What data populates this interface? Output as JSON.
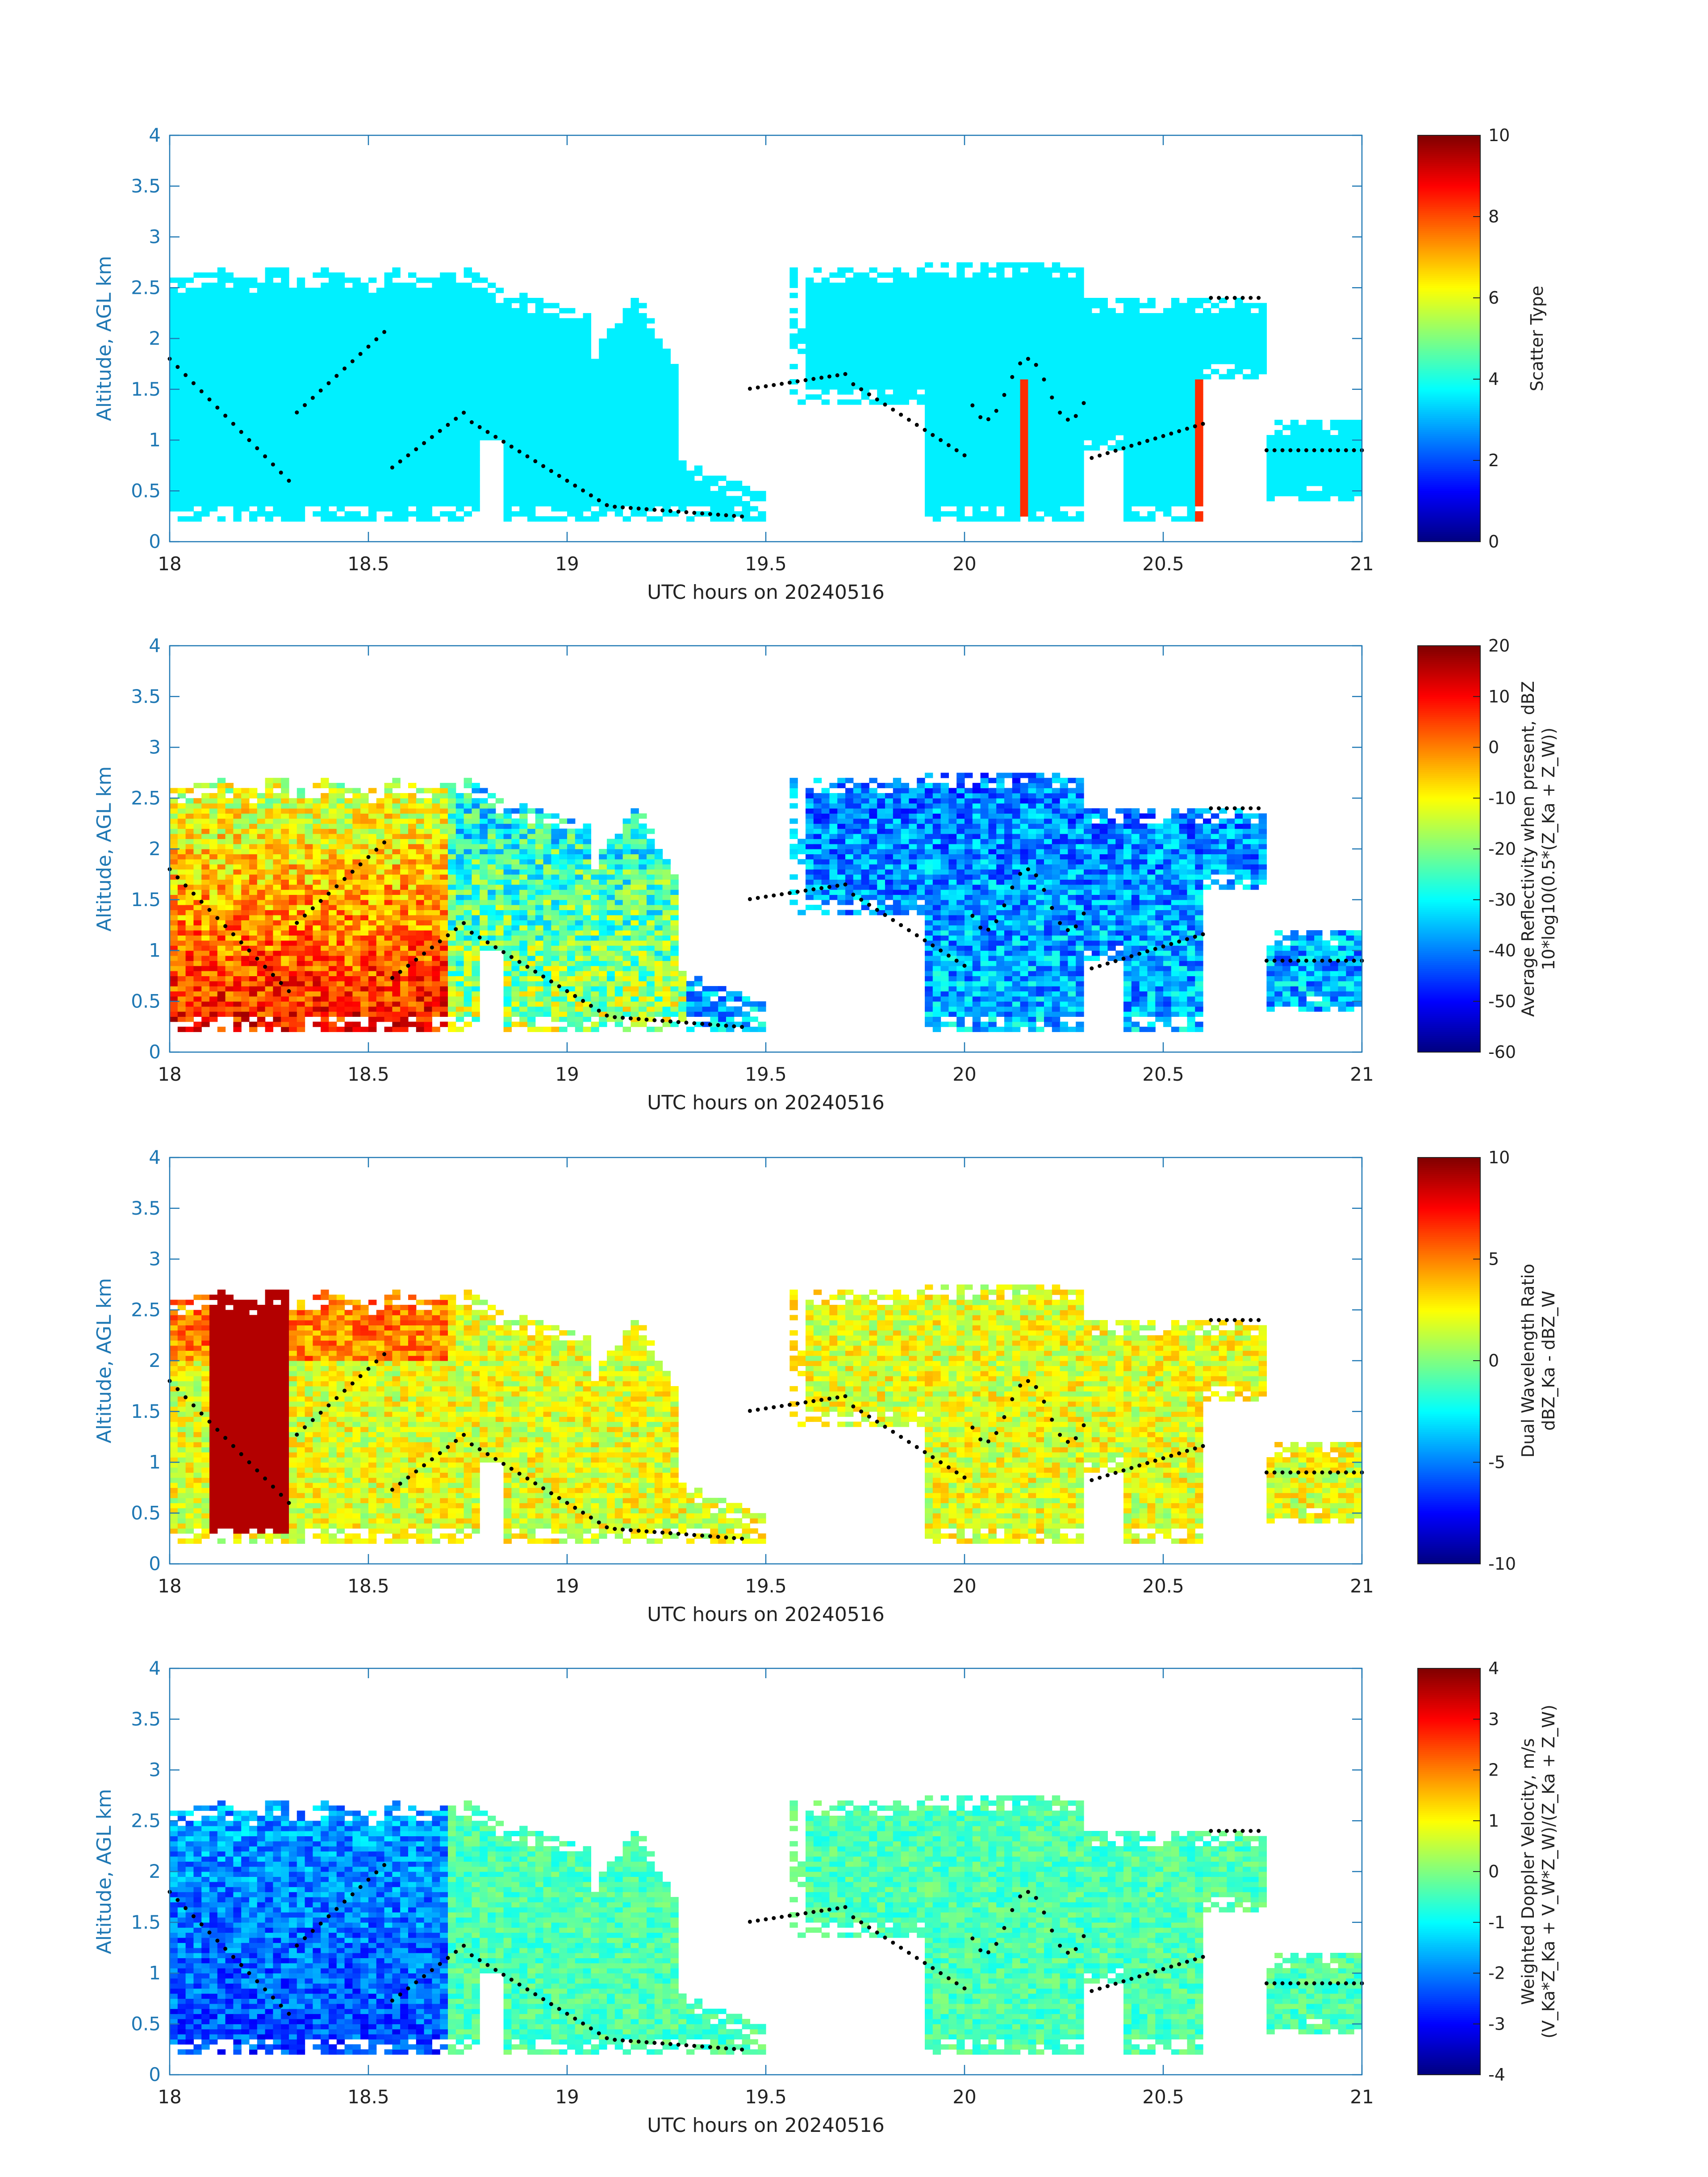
{
  "chart_data": [
    {
      "type": "heatmap",
      "title": "",
      "xlabel": "UTC hours on 20240516",
      "ylabel": "Altitude, AGL km",
      "xlim": [
        18,
        21
      ],
      "ylim": [
        0,
        4
      ],
      "xticks": [
        "18",
        "18.5",
        "19",
        "19.5",
        "20",
        "20.5",
        "21"
      ],
      "yticks": [
        "0",
        "0.5",
        "1",
        "1.5",
        "2",
        "2.5",
        "3",
        "3.5",
        "4"
      ],
      "colorbar": {
        "label_lines": [
          "Scatter Type"
        ],
        "ticks": [
          "0",
          "2",
          "4",
          "6",
          "8",
          "10"
        ],
        "range": [
          0,
          10
        ],
        "colormap": "jet"
      },
      "field": "scatter_type"
    },
    {
      "type": "heatmap",
      "title": "",
      "xlabel": "UTC hours on 20240516",
      "ylabel": "Altitude, AGL km",
      "xlim": [
        18,
        21
      ],
      "ylim": [
        0,
        4
      ],
      "xticks": [
        "18",
        "18.5",
        "19",
        "19.5",
        "20",
        "20.5",
        "21"
      ],
      "yticks": [
        "0",
        "0.5",
        "1",
        "1.5",
        "2",
        "2.5",
        "3",
        "3.5",
        "4"
      ],
      "colorbar": {
        "label_lines": [
          "Average Reflectivity when present, dBZ",
          "10*log10(0.5*(Z_Ka + Z_W))"
        ],
        "ticks": [
          "-60",
          "-50",
          "-40",
          "-30",
          "-20",
          "-10",
          "0",
          "10",
          "20"
        ],
        "range": [
          -60,
          20
        ],
        "colormap": "jet"
      },
      "field": "reflectivity"
    },
    {
      "type": "heatmap",
      "title": "",
      "xlabel": "UTC hours on 20240516",
      "ylabel": "Altitude, AGL km",
      "xlim": [
        18,
        21
      ],
      "ylim": [
        0,
        4
      ],
      "xticks": [
        "18",
        "18.5",
        "19",
        "19.5",
        "20",
        "20.5",
        "21"
      ],
      "yticks": [
        "0",
        "0.5",
        "1",
        "1.5",
        "2",
        "2.5",
        "3",
        "3.5",
        "4"
      ],
      "colorbar": {
        "label_lines": [
          "Dual Wavelength Ratio",
          "dBZ_Ka - dBZ_W"
        ],
        "ticks": [
          "-10",
          "-5",
          "0",
          "5",
          "10"
        ],
        "range": [
          -10,
          10
        ],
        "colormap": "jet"
      },
      "field": "dwr"
    },
    {
      "type": "heatmap",
      "title": "",
      "xlabel": "UTC hours on 20240516",
      "ylabel": "Altitude, AGL km",
      "xlim": [
        18,
        21
      ],
      "ylim": [
        0,
        4
      ],
      "xticks": [
        "18",
        "18.5",
        "19",
        "19.5",
        "20",
        "20.5",
        "21"
      ],
      "yticks": [
        "0",
        "0.5",
        "1",
        "1.5",
        "2",
        "2.5",
        "3",
        "3.5",
        "4"
      ],
      "colorbar": {
        "label_lines": [
          "Weighted Doppler Velocity, m/s",
          "(V_Ka*Z_Ka + V_W*Z_W)/(Z_Ka + Z_W)"
        ],
        "ticks": [
          "-4",
          "-3",
          "-2",
          "-1",
          "0",
          "1",
          "2",
          "3",
          "4"
        ],
        "range": [
          -4,
          4
        ],
        "colormap": "jet"
      },
      "field": "velocity"
    }
  ],
  "colors": {
    "axis": "#1f78b4",
    "dots": "#000000"
  }
}
